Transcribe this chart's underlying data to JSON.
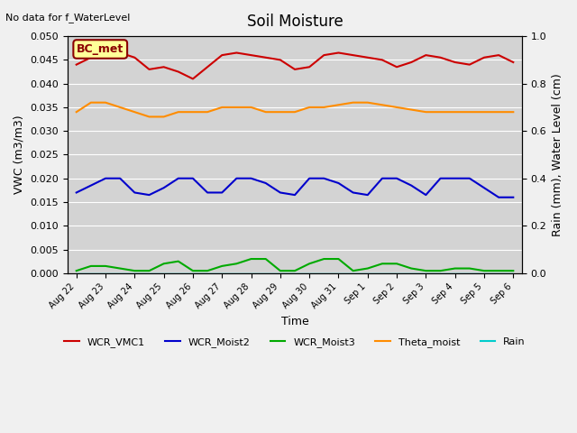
{
  "title": "Soil Moisture",
  "xlabel": "Time",
  "ylabel_left": "VWC (m3/m3)",
  "ylabel_right": "Rain (mm), Water Level (cm)",
  "annotation_text": "No data for f_WaterLevel",
  "box_label": "BC_met",
  "ylim_left": [
    0,
    0.05
  ],
  "ylim_right": [
    0.0,
    1.0
  ],
  "yticks_left": [
    0.0,
    0.005,
    0.01,
    0.015,
    0.02,
    0.025,
    0.03,
    0.035,
    0.04,
    0.045,
    0.05
  ],
  "yticks_right": [
    0.0,
    0.2,
    0.4,
    0.6,
    0.8,
    1.0
  ],
  "background_color": "#d3d3d3",
  "fig_background": "#f0f0f0",
  "series": {
    "WCR_VMC1": {
      "color": "#cc0000",
      "linewidth": 1.5,
      "x": [
        0,
        0.5,
        1,
        1.5,
        2,
        2.5,
        3,
        3.5,
        4,
        4.5,
        5,
        5.5,
        6,
        6.5,
        7,
        7.5,
        8,
        8.5,
        9,
        9.5,
        10,
        10.5,
        11,
        11.5,
        12,
        12.5,
        13,
        13.5,
        14,
        14.5,
        15
      ],
      "y": [
        0.044,
        0.0455,
        0.046,
        0.0465,
        0.0455,
        0.043,
        0.0435,
        0.0425,
        0.041,
        0.0435,
        0.046,
        0.0465,
        0.046,
        0.0455,
        0.045,
        0.043,
        0.0435,
        0.046,
        0.0465,
        0.046,
        0.0455,
        0.045,
        0.0435,
        0.0445,
        0.046,
        0.0455,
        0.0445,
        0.044,
        0.0455,
        0.046,
        0.0445
      ]
    },
    "WCR_Moist2": {
      "color": "#0000cc",
      "linewidth": 1.5,
      "x": [
        0,
        0.5,
        1,
        1.5,
        2,
        2.5,
        3,
        3.5,
        4,
        4.5,
        5,
        5.5,
        6,
        6.5,
        7,
        7.5,
        8,
        8.5,
        9,
        9.5,
        10,
        10.5,
        11,
        11.5,
        12,
        12.5,
        13,
        13.5,
        14,
        14.5,
        15
      ],
      "y": [
        0.017,
        0.0185,
        0.02,
        0.02,
        0.017,
        0.0165,
        0.018,
        0.02,
        0.02,
        0.017,
        0.017,
        0.02,
        0.02,
        0.019,
        0.017,
        0.0165,
        0.02,
        0.02,
        0.019,
        0.017,
        0.0165,
        0.02,
        0.02,
        0.0185,
        0.0165,
        0.02,
        0.02,
        0.02,
        0.018,
        0.016,
        0.016
      ]
    },
    "WCR_Moist3": {
      "color": "#00aa00",
      "linewidth": 1.5,
      "x": [
        0,
        0.5,
        1,
        1.5,
        2,
        2.5,
        3,
        3.5,
        4,
        4.5,
        5,
        5.5,
        6,
        6.5,
        7,
        7.5,
        8,
        8.5,
        9,
        9.5,
        10,
        10.5,
        11,
        11.5,
        12,
        12.5,
        13,
        13.5,
        14,
        14.5,
        15
      ],
      "y": [
        0.0005,
        0.0015,
        0.0015,
        0.001,
        0.0005,
        0.0005,
        0.002,
        0.0025,
        0.0005,
        0.0005,
        0.0015,
        0.002,
        0.003,
        0.003,
        0.0005,
        0.0005,
        0.002,
        0.003,
        0.003,
        0.0005,
        0.001,
        0.002,
        0.002,
        0.001,
        0.0005,
        0.0005,
        0.001,
        0.001,
        0.0005,
        0.0005,
        0.0005
      ]
    },
    "Theta_moist": {
      "color": "#ff8c00",
      "linewidth": 1.5,
      "x": [
        0,
        0.5,
        1,
        1.5,
        2,
        2.5,
        3,
        3.5,
        4,
        4.5,
        5,
        5.5,
        6,
        6.5,
        7,
        7.5,
        8,
        8.5,
        9,
        9.5,
        10,
        10.5,
        11,
        11.5,
        12,
        12.5,
        13,
        13.5,
        14,
        14.5,
        15
      ],
      "y": [
        0.034,
        0.036,
        0.036,
        0.035,
        0.034,
        0.033,
        0.033,
        0.034,
        0.034,
        0.034,
        0.035,
        0.035,
        0.035,
        0.034,
        0.034,
        0.034,
        0.035,
        0.035,
        0.0355,
        0.036,
        0.036,
        0.0355,
        0.035,
        0.0345,
        0.034,
        0.034,
        0.034,
        0.034,
        0.034,
        0.034,
        0.034
      ]
    },
    "Rain": {
      "color": "#00cccc",
      "linewidth": 1.0,
      "x": [
        0,
        0.5,
        1,
        1.5,
        2,
        2.5,
        3,
        3.5,
        4,
        4.5,
        5,
        5.5,
        6,
        6.5,
        7,
        7.5,
        8,
        8.5,
        9,
        9.5,
        10,
        10.5,
        11,
        11.5,
        12,
        12.5,
        13,
        13.5,
        14,
        14.5,
        15
      ],
      "y": [
        0,
        0,
        0,
        0,
        0,
        0,
        0,
        0,
        0,
        0,
        0,
        0,
        0,
        0,
        0,
        0,
        0,
        0,
        0,
        0,
        0,
        0,
        0,
        0,
        0,
        0,
        0,
        0,
        0,
        0,
        0
      ]
    }
  },
  "x_tick_positions": [
    0,
    1,
    2,
    3,
    4,
    5,
    6,
    7,
    8,
    9,
    10,
    11,
    12,
    13,
    14,
    15
  ],
  "x_tick_labels": [
    "Aug 22",
    "Aug 23",
    "Aug 24",
    "Aug 25",
    "Aug 26",
    "Aug 27",
    "Aug 28",
    "Aug 29",
    "Aug 30",
    "Aug 31",
    "Sep 1",
    "Sep 2",
    "Sep 3",
    "Sep 4",
    "Sep 5",
    "Sep 6"
  ],
  "legend_entries": [
    "WCR_VMC1",
    "WCR_Moist2",
    "WCR_Moist3",
    "Theta_moist",
    "Rain"
  ],
  "legend_colors": [
    "#cc0000",
    "#0000cc",
    "#00aa00",
    "#ff8c00",
    "#00cccc"
  ]
}
